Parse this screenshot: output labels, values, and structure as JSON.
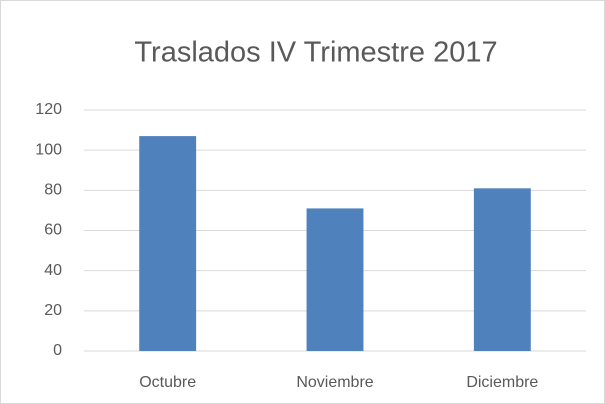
{
  "chart_data": {
    "type": "bar",
    "title": "Traslados IV Trimestre 2017",
    "categories": [
      "Octubre",
      "Noviembre",
      "Diciembre"
    ],
    "values": [
      107,
      71,
      81
    ],
    "color": "#4f81bd",
    "ylim": [
      0,
      120
    ],
    "yticks": [
      0,
      20,
      40,
      60,
      80,
      100,
      120
    ],
    "grid": true
  }
}
